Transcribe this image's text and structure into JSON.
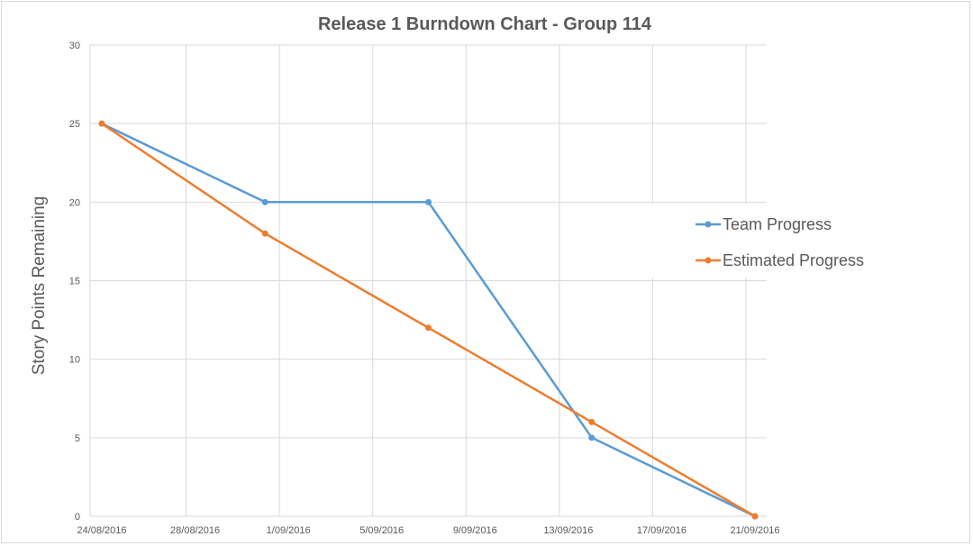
{
  "chart_data": {
    "type": "line",
    "title": "Release 1 Burndown Chart - Group 114",
    "xlabel": "",
    "ylabel": "Story Points Remaining",
    "ylim": [
      0,
      30
    ],
    "yticks": [
      "0",
      "5",
      "10",
      "15",
      "20",
      "25",
      "30"
    ],
    "xticks": [
      "24/08/2016",
      "28/08/2016",
      "1/09/2016",
      "5/09/2016",
      "9/09/2016",
      "13/09/2016",
      "17/09/2016",
      "21/09/2016"
    ],
    "xlim": [
      "2016-08-24",
      "2016-09-21"
    ],
    "grid": true,
    "legend_position": "right",
    "series": [
      {
        "name": "Team Progress",
        "color": "#5B9BD5",
        "points": [
          {
            "x": "2016-08-24",
            "y": 25
          },
          {
            "x": "2016-08-31",
            "y": 20
          },
          {
            "x": "2016-09-07",
            "y": 20
          },
          {
            "x": "2016-09-14",
            "y": 5
          },
          {
            "x": "2016-09-21",
            "y": 0
          }
        ]
      },
      {
        "name": "Estimated Progress",
        "color": "#ED7D31",
        "points": [
          {
            "x": "2016-08-24",
            "y": 25
          },
          {
            "x": "2016-08-31",
            "y": 18
          },
          {
            "x": "2016-09-07",
            "y": 12
          },
          {
            "x": "2016-09-14",
            "y": 6
          },
          {
            "x": "2016-09-21",
            "y": 0
          }
        ]
      }
    ]
  }
}
